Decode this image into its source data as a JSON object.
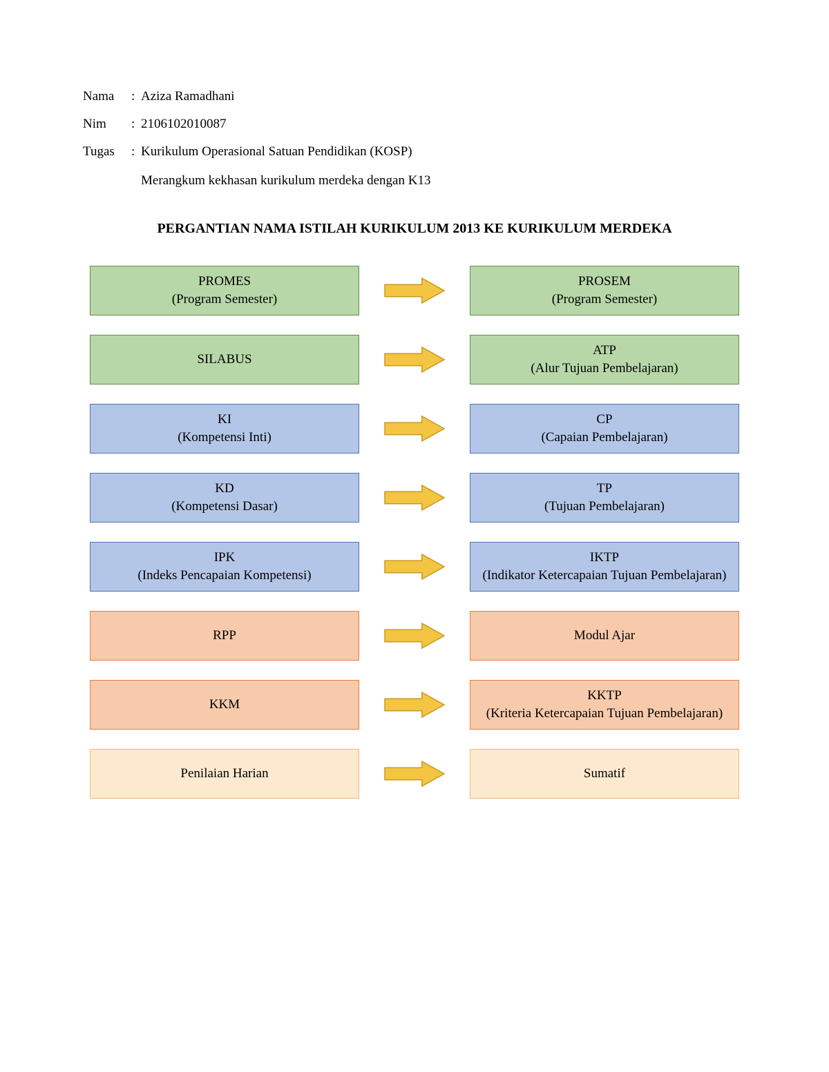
{
  "header": {
    "nama_label": "Nama",
    "nama_value": "Aziza Ramadhani",
    "nim_label": "Nim",
    "nim_value": "2106102010087",
    "tugas_label": "Tugas",
    "tugas_value": "Kurikulum Operasional Satuan Pendidikan (KOSP)",
    "tugas_sub": "Merangkum kekhasan kurikulum merdeka dengan K13"
  },
  "title": "PERGANTIAN NAMA ISTILAH KURIKULUM 2013 KE KURIKULUM MERDEKA",
  "colors": {
    "green_fill": "#b7d7a8",
    "green_border": "#5f8c47",
    "blue_fill": "#b4c6e7",
    "blue_border": "#4a72b8",
    "orange_fill": "#f7caac",
    "orange_border": "#ed7d31",
    "cream_fill": "#fde9cf",
    "cream_border": "#f1b779",
    "arrow_fill": "#f4c542",
    "arrow_border": "#c79a1f"
  },
  "arrow": {
    "width": 90,
    "height": 40
  },
  "rows": [
    {
      "colorKey": "green",
      "left": {
        "line1": "PROMES",
        "line2": "(Program Semester)"
      },
      "right": {
        "line1": "PROSEM",
        "line2": "(Program Semester)"
      }
    },
    {
      "colorKey": "green",
      "left": {
        "line1": "SILABUS",
        "line2": ""
      },
      "right": {
        "line1": "ATP",
        "line2": "(Alur Tujuan Pembelajaran)"
      }
    },
    {
      "colorKey": "blue",
      "left": {
        "line1": "KI",
        "line2": "(Kompetensi Inti)"
      },
      "right": {
        "line1": "CP",
        "line2": "(Capaian Pembelajaran)"
      }
    },
    {
      "colorKey": "blue",
      "left": {
        "line1": "KD",
        "line2": "(Kompetensi Dasar)"
      },
      "right": {
        "line1": "TP",
        "line2": "(Tujuan Pembelajaran)"
      }
    },
    {
      "colorKey": "blue",
      "left": {
        "line1": "IPK",
        "line2": "(Indeks Pencapaian Kompetensi)"
      },
      "right": {
        "line1": "IKTP",
        "line2": "(Indikator Ketercapaian Tujuan Pembelajaran)"
      }
    },
    {
      "colorKey": "orange",
      "left": {
        "line1": "RPP",
        "line2": ""
      },
      "right": {
        "line1": "Modul Ajar",
        "line2": ""
      }
    },
    {
      "colorKey": "orange",
      "left": {
        "line1": "KKM",
        "line2": ""
      },
      "right": {
        "line1": "KKTP",
        "line2": "(Kriteria Ketercapaian Tujuan Pembelajaran)"
      }
    },
    {
      "colorKey": "cream",
      "left": {
        "line1": "Penilaian Harian",
        "line2": ""
      },
      "right": {
        "line1": "Sumatif",
        "line2": ""
      }
    }
  ]
}
